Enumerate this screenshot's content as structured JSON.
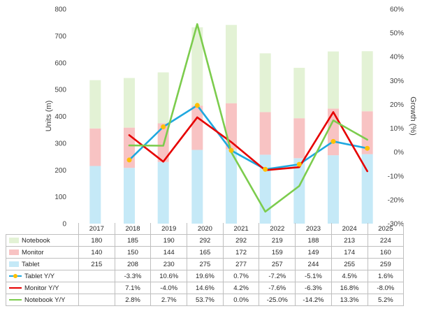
{
  "chart_data": {
    "type": "bar",
    "stacked": true,
    "categories": [
      "2017",
      "2018",
      "2019",
      "2020",
      "2021",
      "2022",
      "2023",
      "2024",
      "2025"
    ],
    "series": [
      {
        "name": "Tablet",
        "kind": "bar",
        "axis": "left",
        "color": "#c5e9f7",
        "values": [
          215,
          208,
          230,
          275,
          277,
          257,
          244,
          255,
          259
        ],
        "labels": [
          "215",
          "208",
          "230",
          "275",
          "277",
          "257",
          "244",
          "255",
          "259"
        ]
      },
      {
        "name": "Monitor",
        "kind": "bar",
        "axis": "left",
        "color": "#f8c3c3",
        "values": [
          140,
          150,
          144,
          165,
          172,
          159,
          149,
          174,
          160
        ],
        "labels": [
          "140",
          "150",
          "144",
          "165",
          "172",
          "159",
          "149",
          "174",
          "160"
        ]
      },
      {
        "name": "Notebook",
        "kind": "bar",
        "axis": "left",
        "color": "#e3f2d5",
        "values": [
          180,
          185,
          190,
          292,
          292,
          219,
          188,
          213,
          224
        ],
        "labels": [
          "180",
          "185",
          "190",
          "292",
          "292",
          "219",
          "188",
          "213",
          "224"
        ]
      },
      {
        "name": "Tablet Y/Y",
        "kind": "line",
        "axis": "right",
        "color": "#1fa8df",
        "marker": "#ffc000",
        "values": [
          null,
          -3.3,
          10.6,
          19.6,
          0.7,
          -7.2,
          -5.1,
          4.5,
          1.6
        ],
        "labels": [
          "",
          "-3.3%",
          "10.6%",
          "19.6%",
          "0.7%",
          "-7.2%",
          "-5.1%",
          "4.5%",
          "1.6%"
        ]
      },
      {
        "name": "Monitor Y/Y",
        "kind": "line",
        "axis": "right",
        "color": "#e60000",
        "values": [
          null,
          7.1,
          -4.0,
          14.6,
          4.2,
          -7.6,
          -6.3,
          16.8,
          -8.0
        ],
        "labels": [
          "",
          "7.1%",
          "-4.0%",
          "14.6%",
          "4.2%",
          "-7.6%",
          "-6.3%",
          "16.8%",
          "-8.0%"
        ]
      },
      {
        "name": "Notebook Y/Y",
        "kind": "line",
        "axis": "right",
        "color": "#7ccc4d",
        "values": [
          null,
          2.8,
          2.7,
          53.7,
          0.0,
          -25.0,
          -14.2,
          13.3,
          5.2
        ],
        "labels": [
          "",
          "2.8%",
          "2.7%",
          "53.7%",
          "0.0%",
          "-25.0%",
          "-14.2%",
          "13.3%",
          "5.2%"
        ]
      }
    ],
    "ylabel": "Units (m)",
    "ylim": [
      0,
      800
    ],
    "yticks": [
      "0",
      "100",
      "200",
      "300",
      "400",
      "500",
      "600",
      "700",
      "800"
    ],
    "y2label": "Growth (%)",
    "y2lim": [
      -30,
      60
    ],
    "y2ticks": [
      "-30%",
      "-20%",
      "-10%",
      "0%",
      "10%",
      "20%",
      "30%",
      "40%",
      "50%",
      "60%"
    ],
    "grid": false,
    "data_table": true,
    "table_rows": [
      {
        "series": "Notebook",
        "key": "box"
      },
      {
        "series": "Monitor",
        "key": "box"
      },
      {
        "series": "Tablet",
        "key": "box"
      },
      {
        "series": "Tablet Y/Y",
        "key": "line-marker"
      },
      {
        "series": "Monitor Y/Y",
        "key": "line"
      },
      {
        "series": "Notebook Y/Y",
        "key": "line"
      }
    ]
  }
}
